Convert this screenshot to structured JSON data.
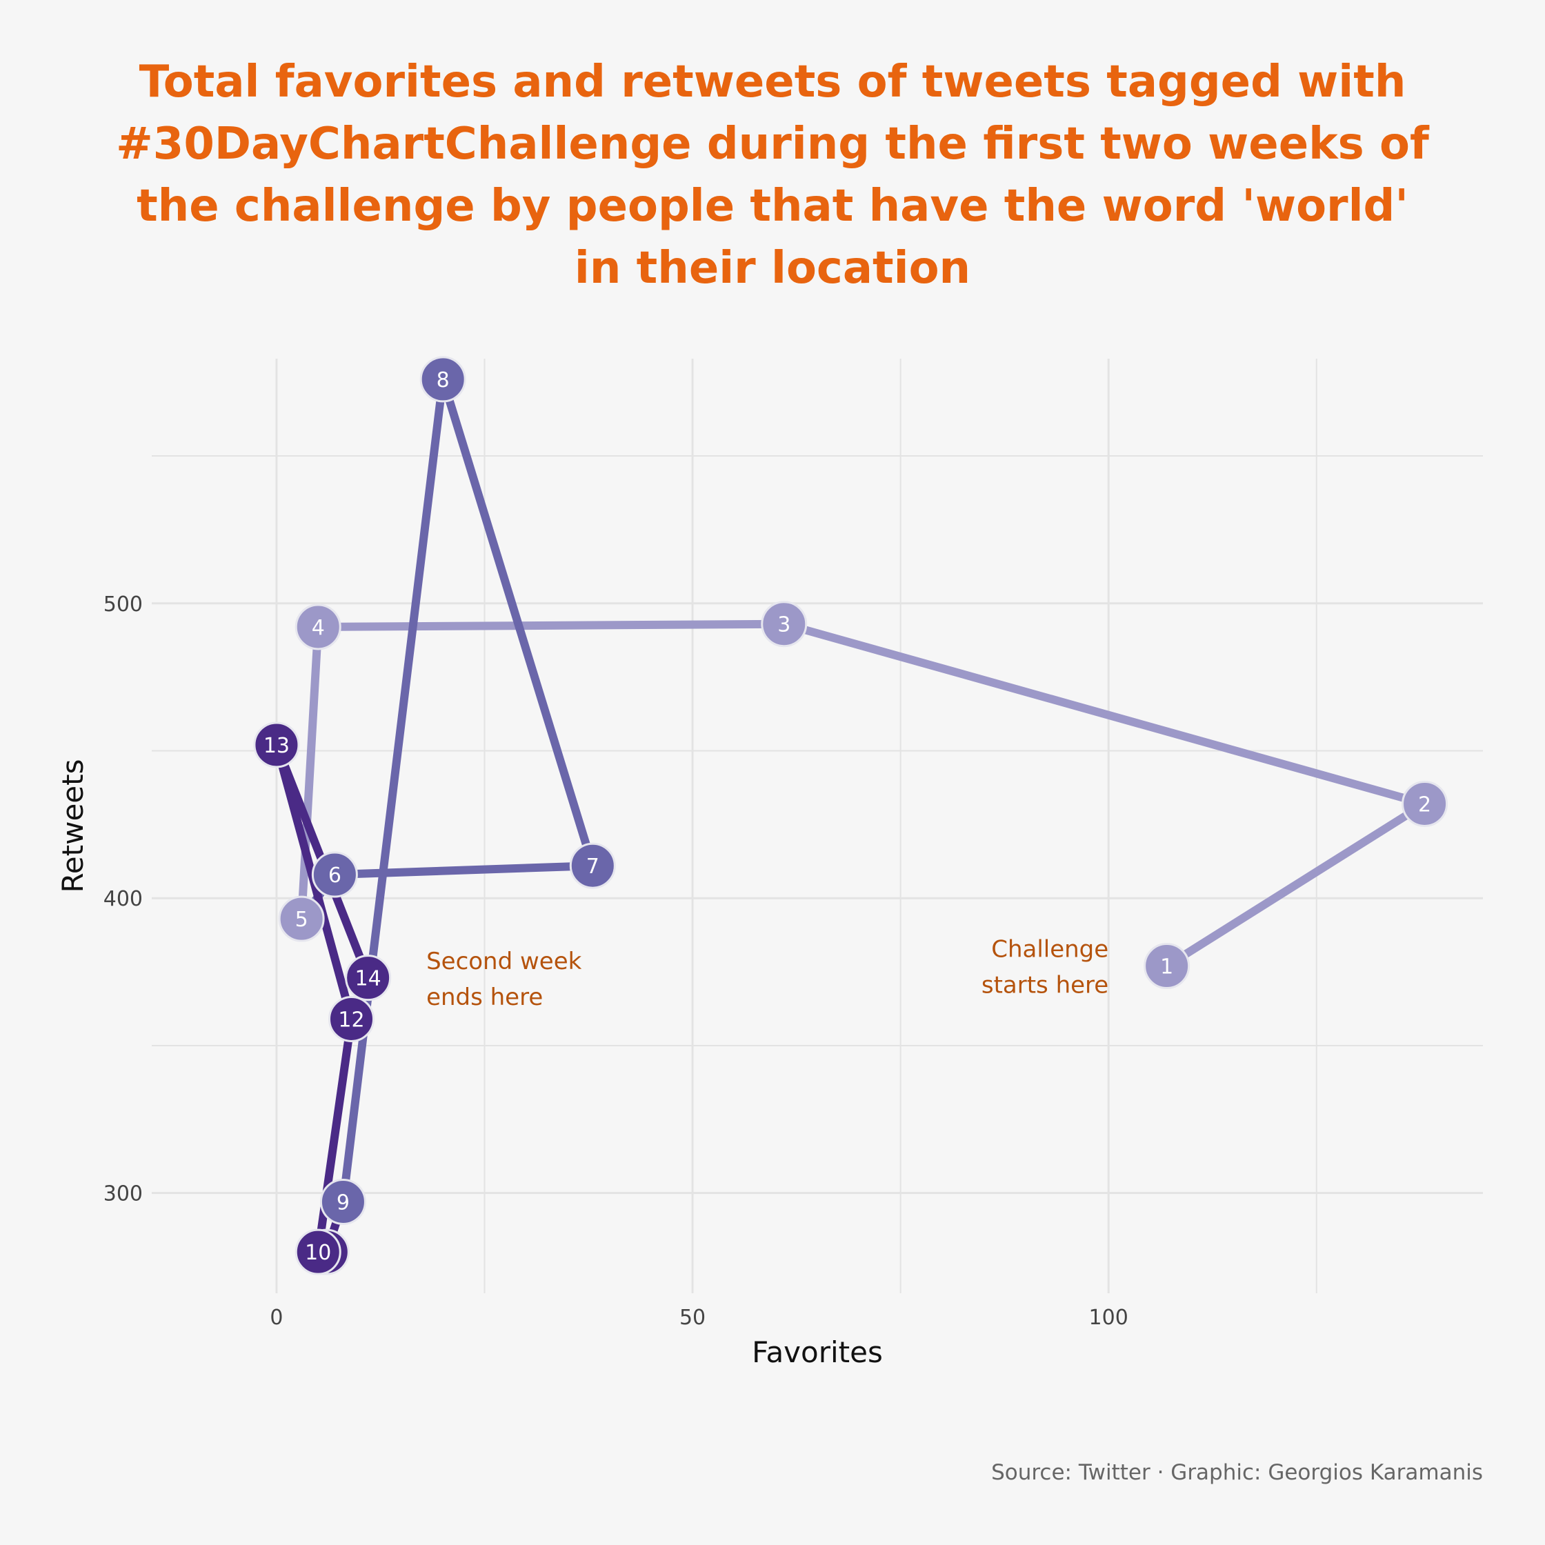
{
  "colors": {
    "title": "#e8640f",
    "annotation": "#b5530d",
    "grid": "#e3e3e3",
    "background": "#f6f6f6",
    "week1": "#9c98c8",
    "week2a": "#6a66aa",
    "week2b": "#4a2a86"
  },
  "chart_data": {
    "type": "line",
    "title_lines": [
      "Total favorites and retweets of tweets tagged with",
      "#30DayChartChallenge during the first two weeks of",
      "the challenge by people that have the word 'world'",
      "in their location"
    ],
    "xlabel": "Favorites",
    "ylabel": "Retweets",
    "xlim": [
      -15,
      145
    ],
    "ylim": [
      266,
      583
    ],
    "x_ticks": [
      0,
      50,
      100
    ],
    "y_ticks": [
      300,
      400,
      500
    ],
    "grid": true,
    "legend": "none",
    "points": [
      {
        "day": "1",
        "favorites": 107,
        "retweets": 377
      },
      {
        "day": "2",
        "favorites": 138,
        "retweets": 432
      },
      {
        "day": "3",
        "favorites": 61,
        "retweets": 493
      },
      {
        "day": "4",
        "favorites": 5,
        "retweets": 492
      },
      {
        "day": "5",
        "favorites": 3,
        "retweets": 393
      },
      {
        "day": "6",
        "favorites": 7,
        "retweets": 408
      },
      {
        "day": "7",
        "favorites": 38,
        "retweets": 411
      },
      {
        "day": "8",
        "favorites": 20,
        "retweets": 576
      },
      {
        "day": "9",
        "favorites": 8,
        "retweets": 297
      },
      {
        "day": "11",
        "favorites": 6,
        "retweets": 280
      },
      {
        "day": "10",
        "favorites": 5,
        "retweets": 280
      },
      {
        "day": "12",
        "favorites": 9,
        "retweets": 359
      },
      {
        "day": "13",
        "favorites": 0,
        "retweets": 452
      },
      {
        "day": "14",
        "favorites": 11,
        "retweets": 373
      }
    ],
    "annotations": [
      {
        "lines": [
          "Challenge",
          "starts here"
        ],
        "x": 100,
        "y": 380,
        "align": "end"
      },
      {
        "lines": [
          "Second week",
          "ends here"
        ],
        "x": 18,
        "y": 376,
        "align": "start"
      }
    ],
    "caption": "Source: Twitter · Graphic: Georgios Karamanis"
  }
}
